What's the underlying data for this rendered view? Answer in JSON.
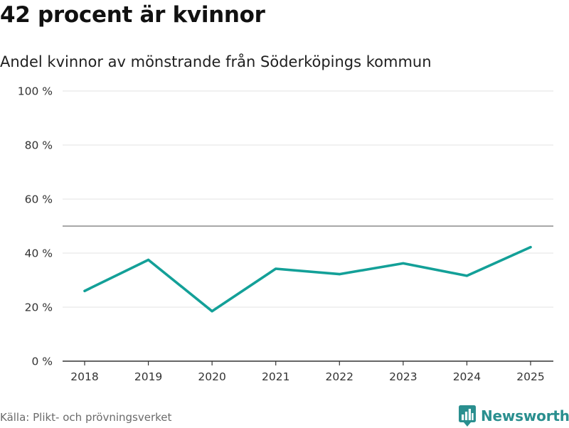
{
  "header": {
    "title": "42 procent är kvinnor",
    "subtitle": "Andel kvinnor av mönstrande från Söderköpings kommun"
  },
  "footer": {
    "source": "Källa: Plikt- och prövningsverket",
    "brand_name": "Newsworthy",
    "brand_icon": "newsworthy-logo-icon"
  },
  "colors": {
    "line": "#13a098",
    "grid": "#e3e3e3",
    "reference": "#8c8c8c",
    "axis": "#333333",
    "brand": "#2a8f8f"
  },
  "chart_data": {
    "type": "line",
    "title": "42 procent är kvinnor",
    "subtitle": "Andel kvinnor av mönstrande från Söderköpings kommun",
    "xlabel": "",
    "ylabel": "",
    "x": [
      "2018",
      "2019",
      "2020",
      "2021",
      "2022",
      "2023",
      "2024",
      "2025"
    ],
    "series": [
      {
        "name": "Andel kvinnor",
        "values": [
          26,
          37.5,
          18.5,
          34.2,
          32.2,
          36.2,
          31.6,
          42.2
        ]
      }
    ],
    "ylim": [
      0,
      100
    ],
    "yticks": [
      0,
      20,
      40,
      60,
      80,
      100
    ],
    "ytick_labels": [
      "0 %",
      "20 %",
      "40 %",
      "60 %",
      "80 %",
      "100 %"
    ],
    "reference_line": 50,
    "grid": true,
    "legend": "none"
  }
}
